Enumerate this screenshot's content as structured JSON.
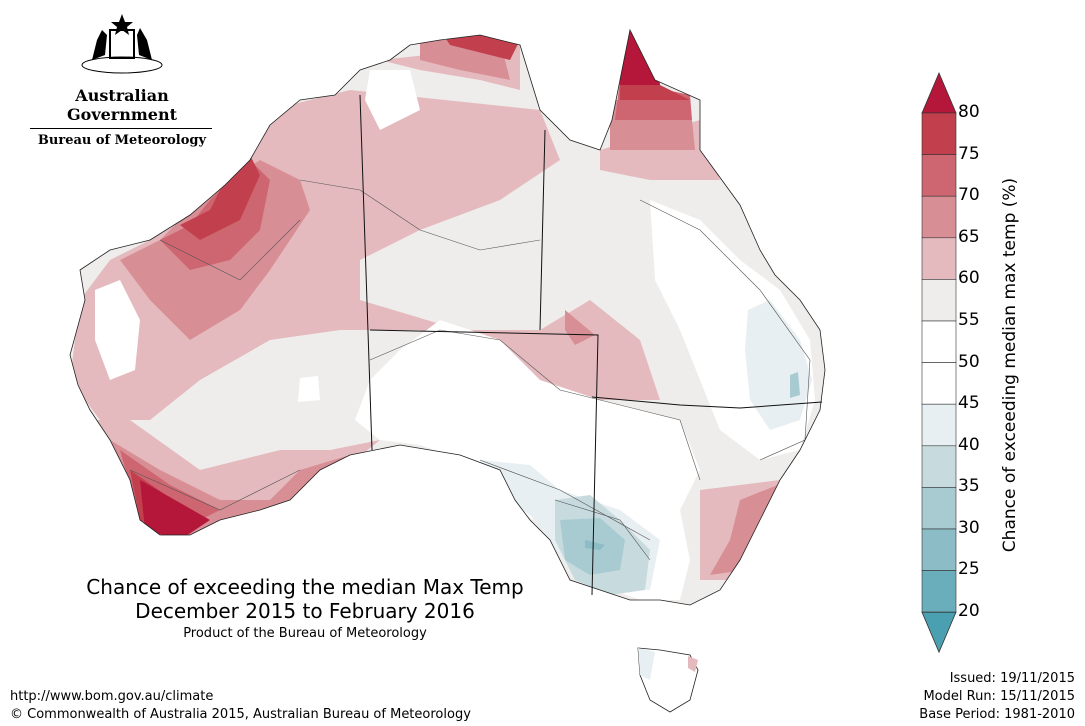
{
  "header": {
    "government": "Australian Government",
    "bureau": "Bureau of Meteorology"
  },
  "title": {
    "line1": "Chance of exceeding the median Max Temp",
    "line2": "December 2015 to February 2016",
    "line3": "Product of the Bureau of Meteorology"
  },
  "footer": {
    "url": "http://www.bom.gov.au/climate",
    "copyright": "© Commonwealth of Australia 2015, Australian Bureau of Meteorology",
    "issued": "Issued: 19/11/2015",
    "model_run": "Model Run: 15/11/2015",
    "base_period": "Base Period: 1981-2010"
  },
  "legend": {
    "title": "Chance of exceeding median max temp (%)",
    "labels": [
      "80",
      "75",
      "70",
      "65",
      "60",
      "55",
      "50",
      "45",
      "40",
      "35",
      "30",
      "25",
      "20"
    ],
    "colors": {
      "gt80": "#b5173a",
      "75-80": "#c2404e",
      "70-75": "#ce6671",
      "65-70": "#d88e95",
      "60-65": "#e4babe",
      "55-60": "#efedeb",
      "50-55": "#ffffff",
      "45-50": "#ffffff",
      "40-45": "#e8eff2",
      "35-40": "#c7dade",
      "30-35": "#a8cbd2",
      "25-30": "#8cbcc6",
      "20-25": "#6aaebb",
      "lt20": "#4aa0b1"
    }
  }
}
